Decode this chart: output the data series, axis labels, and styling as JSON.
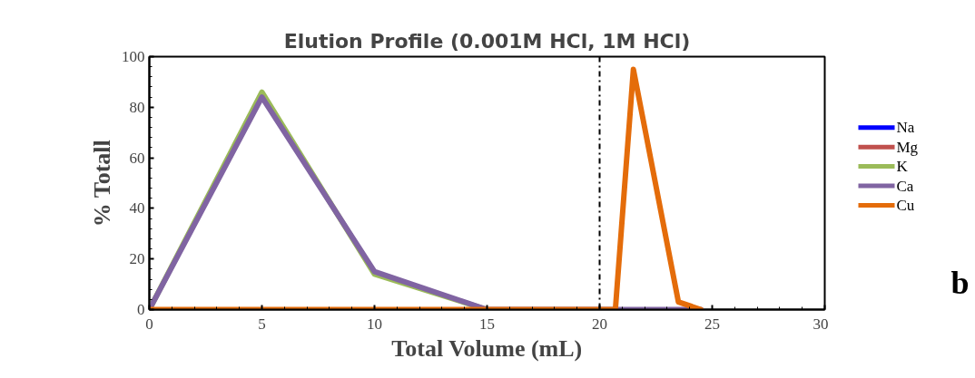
{
  "chart_data": {
    "type": "line",
    "title": "Elution Profile (0.001M HCl, 1M HCl)",
    "xlabel": "Total Volume (mL)",
    "ylabel": "% Totall",
    "xlim": [
      0,
      30
    ],
    "xticks": [
      0,
      5,
      10,
      15,
      20,
      25,
      30
    ],
    "ylim": [
      0,
      100
    ],
    "yticks": [
      0,
      20,
      40,
      60,
      80,
      100
    ],
    "series": [
      {
        "name": "Na",
        "color": "#0000ff"
      },
      {
        "name": "Mg",
        "color": "#c0504d"
      },
      {
        "name": "K",
        "color": "#9bbb59",
        "x": [
          0,
          5,
          10,
          15
        ],
        "values": [
          0,
          86,
          14,
          0
        ]
      },
      {
        "name": "Ca",
        "color": "#8064a2",
        "x": [
          0,
          5,
          10,
          15,
          20,
          20.7,
          21.5,
          23.5,
          24.5
        ],
        "values": [
          0,
          84,
          15,
          0,
          0,
          0,
          0,
          0,
          0
        ]
      },
      {
        "name": "Cu",
        "color": "#e46c0a",
        "x": [
          0,
          5,
          10,
          15,
          20,
          20.7,
          21.5,
          23.5,
          24.5
        ],
        "values": [
          0,
          0,
          0,
          0,
          0,
          0,
          95,
          3,
          0
        ]
      }
    ],
    "ref_lines": [
      {
        "axis": "x",
        "value": 20,
        "line_style": "dashdot",
        "color": "#000000"
      }
    ],
    "annotations": [
      "b"
    ],
    "legend": "right",
    "grid": false,
    "marker": "none",
    "line_style": "solid"
  }
}
